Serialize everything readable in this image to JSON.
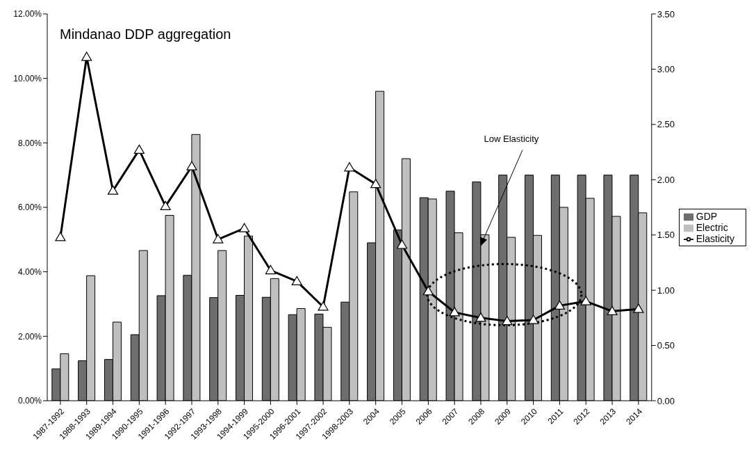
{
  "chart_data": {
    "type": "bar",
    "title": "Mindanao DDP aggregation",
    "categories": [
      "1987-1992",
      "1988-1993",
      "1989-1994",
      "1990-1995",
      "1991-1996",
      "1992-1997",
      "1993-1998",
      "1994-1999",
      "1995-2000",
      "1996-2001",
      "1997-2002",
      "1998-2003",
      "2004",
      "2005",
      "2006",
      "2007",
      "2008",
      "2009",
      "2010",
      "2011",
      "2012",
      "2013",
      "2014"
    ],
    "series": [
      {
        "name": "GDP",
        "color": "#6e6e6e",
        "values": [
          0.99,
          1.24,
          1.28,
          2.05,
          3.26,
          3.89,
          3.2,
          3.27,
          3.21,
          2.67,
          2.69,
          3.06,
          4.9,
          5.3,
          6.3,
          6.5,
          6.79,
          7.0,
          7.0,
          7.0,
          7.0,
          7.0,
          7.0
        ]
      },
      {
        "name": "Electric",
        "color": "#bfbfbf",
        "values": [
          1.46,
          3.88,
          2.44,
          4.66,
          5.75,
          8.26,
          4.66,
          5.11,
          3.79,
          2.86,
          2.28,
          6.48,
          9.6,
          7.51,
          6.26,
          5.21,
          5.15,
          5.07,
          5.13,
          6.0,
          6.28,
          5.72,
          5.83
        ]
      },
      {
        "name": "Elasticity",
        "type": "line",
        "axis": "y2",
        "color": "#000000",
        "marker": "triangle",
        "values": [
          1.48,
          3.11,
          1.9,
          2.27,
          1.76,
          2.12,
          1.46,
          1.56,
          1.18,
          1.08,
          0.85,
          2.11,
          1.96,
          1.41,
          0.99,
          0.8,
          0.75,
          0.72,
          0.73,
          0.86,
          0.9,
          0.81,
          0.83
        ]
      }
    ],
    "ylim": [
      0,
      12
    ],
    "yticks": [
      {
        "value": 0,
        "label": "0.00%"
      },
      {
        "value": 2,
        "label": "2.00%"
      },
      {
        "value": 4,
        "label": "4.00%"
      },
      {
        "value": 6,
        "label": "6.00%"
      },
      {
        "value": 8,
        "label": "8.00%"
      },
      {
        "value": 10,
        "label": "10.00%"
      },
      {
        "value": 12,
        "label": "12.00%"
      }
    ],
    "y2lim": [
      0,
      3.5
    ],
    "y2ticks": [
      {
        "value": 0,
        "label": "0.00"
      },
      {
        "value": 0.5,
        "label": "0.50"
      },
      {
        "value": 1,
        "label": "1.00"
      },
      {
        "value": 1.5,
        "label": "1.50"
      },
      {
        "value": 2,
        "label": "2.00"
      },
      {
        "value": 2.5,
        "label": "2.50"
      },
      {
        "value": 3,
        "label": "3.00"
      },
      {
        "value": 3.5,
        "label": "3.50"
      }
    ],
    "annotations": [
      {
        "text": "Low Elasticity",
        "x": "2008",
        "y": 4.8
      }
    ],
    "legend": "right",
    "grid": false
  }
}
